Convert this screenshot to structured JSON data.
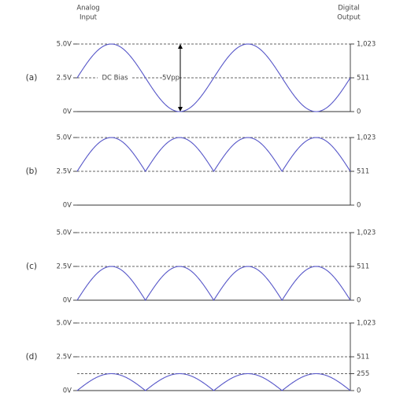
{
  "header": {
    "left": [
      "Analog",
      "Input"
    ],
    "right": [
      "Digital",
      "Output"
    ]
  },
  "panels": [
    {
      "label": "(a)",
      "left_ticks": [
        "5.0V",
        "2.5V",
        "0V"
      ],
      "right_ticks": [
        "1,023",
        "511",
        "0"
      ],
      "annotations": {
        "dc_bias": "DC Bias",
        "amplitude": "5Vpp"
      }
    },
    {
      "label": "(b)",
      "left_ticks": [
        "5.0V",
        "2.5V",
        "0V"
      ],
      "right_ticks": [
        "1,023",
        "511",
        "0"
      ]
    },
    {
      "label": "(c)",
      "left_ticks": [
        "5.0V",
        "2.5V",
        "0V"
      ],
      "right_ticks": [
        "1,023",
        "511",
        "0"
      ]
    },
    {
      "label": "(d)",
      "left_ticks": [
        "5.0V",
        "2.5V",
        "0V"
      ],
      "right_ticks": [
        "1,023",
        "511",
        "255",
        "0"
      ]
    }
  ]
}
